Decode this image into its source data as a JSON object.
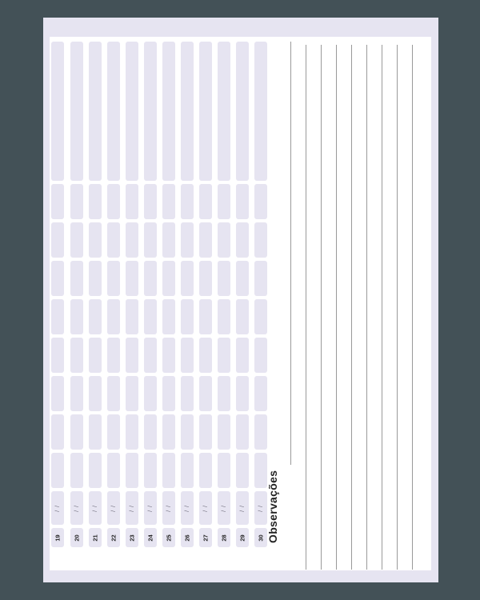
{
  "planner": {
    "notes_title": "Observações",
    "date_placeholder": "/ /",
    "days": [
      "19",
      "20",
      "21",
      "22",
      "23",
      "24",
      "25",
      "26",
      "27",
      "28",
      "29",
      "30"
    ],
    "colors": {
      "background": "#435157",
      "sheet_frame": "#e6e4f1",
      "cell_fill": "#e6e4f1",
      "rule_line": "#9a9a9a"
    }
  }
}
